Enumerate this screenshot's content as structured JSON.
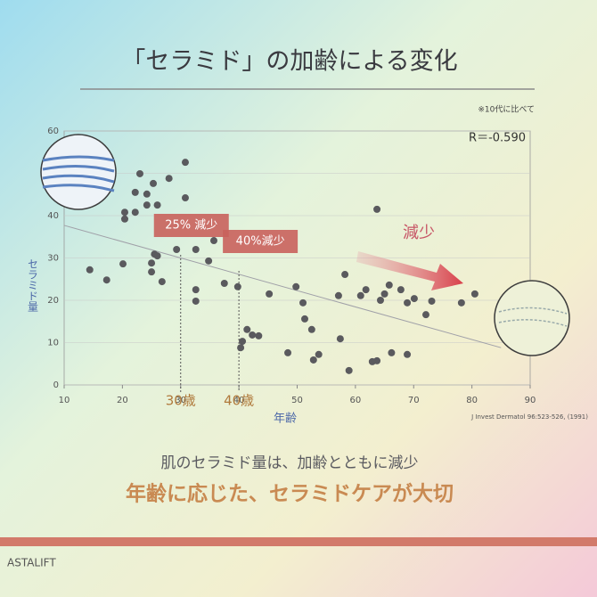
{
  "chart_data": {
    "type": "scatter",
    "title": "「セラミド」の加齢による変化",
    "note": "※10代に比べて",
    "correlation": "R＝-0.590",
    "x_label": "年齢",
    "y_label": "セラミド量",
    "source": "J Invest Dermatol 96:523-526, (1991)",
    "xlim": [
      10,
      90
    ],
    "ylim": [
      0,
      60
    ],
    "xticks": [
      10,
      20,
      30,
      40,
      50,
      60,
      70,
      80,
      90
    ],
    "yticks": [
      0,
      10,
      20,
      30,
      40,
      50,
      60
    ],
    "grid": true,
    "color": "#5a5a5e",
    "x": [
      14.4,
      17.3,
      20.1,
      20.4,
      20.4,
      22.2,
      22.2,
      23.0,
      24.2,
      25.3,
      24.2,
      26.0,
      28.0,
      30.8,
      30.8,
      25.0,
      25.5,
      26.0,
      25.0,
      26.8,
      29.3,
      32.6,
      34.8,
      35.7,
      32.6,
      32.6,
      37.5,
      39.8,
      40.6,
      40.3,
      41.4,
      42.3,
      43.4,
      45.2,
      48.4,
      49.8,
      51.0,
      51.3,
      52.5,
      53.7,
      52.8,
      57.4,
      57.1,
      58.2,
      58.9,
      60.9,
      63.7,
      62.9,
      61.8,
      63.7,
      64.3,
      65.8,
      65.0,
      66.2,
      67.8,
      68.9,
      70.1,
      68.9,
      72.1,
      73.1,
      78.2,
      80.5
    ],
    "values": [
      27.2,
      24.8,
      28.6,
      39.2,
      40.8,
      40.8,
      45.5,
      49.9,
      45.1,
      47.6,
      42.5,
      42.5,
      48.8,
      52.6,
      44.2,
      28.8,
      30.9,
      30.5,
      26.7,
      24.4,
      32.0,
      32.0,
      29.3,
      34.1,
      22.5,
      19.8,
      24.0,
      23.2,
      10.3,
      8.8,
      13.1,
      11.8,
      11.6,
      21.5,
      7.6,
      23.2,
      19.4,
      15.6,
      13.1,
      7.2,
      5.9,
      10.9,
      21.1,
      26.1,
      3.4,
      21.1,
      5.7,
      5.5,
      22.5,
      41.5,
      20.0,
      23.6,
      21.5,
      7.6,
      22.5,
      19.4,
      20.4,
      7.2,
      16.6,
      19.8,
      19.4,
      21.5
    ],
    "trend_line": {
      "x": [
        10,
        85
      ],
      "y": [
        37.7,
        8.8
      ]
    },
    "markers": [
      {
        "x": 30,
        "label": "30歳",
        "callout": "25% 減少"
      },
      {
        "x": 40,
        "label": "40歳",
        "callout": "40%減少"
      }
    ],
    "arrow_label": "減少",
    "caption": "肌のセラミド量は、加齢とともに減少",
    "headline": "年齢に応じた、セラミドケアが大切",
    "footer": "ASTALIFT"
  }
}
